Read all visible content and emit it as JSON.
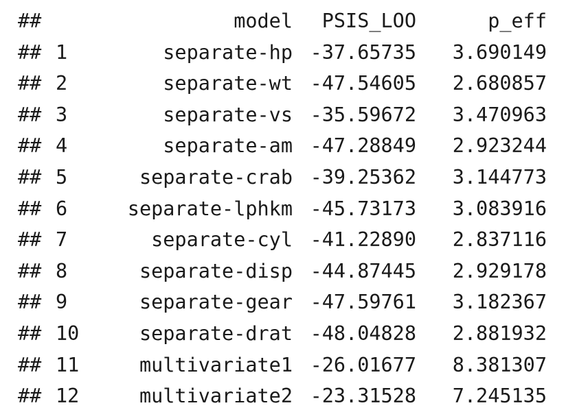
{
  "output": {
    "prefix": "##",
    "header": {
      "index": "",
      "model": "model",
      "psis_loo": "PSIS_LOO",
      "p_eff": "p_eff"
    },
    "rows": [
      {
        "index": "1",
        "model": "separate-hp",
        "psis_loo": "-37.65735",
        "p_eff": "3.690149"
      },
      {
        "index": "2",
        "model": "separate-wt",
        "psis_loo": "-47.54605",
        "p_eff": "2.680857"
      },
      {
        "index": "3",
        "model": "separate-vs",
        "psis_loo": "-35.59672",
        "p_eff": "3.470963"
      },
      {
        "index": "4",
        "model": "separate-am",
        "psis_loo": "-47.28849",
        "p_eff": "2.923244"
      },
      {
        "index": "5",
        "model": "separate-crab",
        "psis_loo": "-39.25362",
        "p_eff": "3.144773"
      },
      {
        "index": "6",
        "model": "separate-lphkm",
        "psis_loo": "-45.73173",
        "p_eff": "3.083916"
      },
      {
        "index": "7",
        "model": "separate-cyl",
        "psis_loo": "-41.22890",
        "p_eff": "2.837116"
      },
      {
        "index": "8",
        "model": "separate-disp",
        "psis_loo": "-44.87445",
        "p_eff": "2.929178"
      },
      {
        "index": "9",
        "model": "separate-gear",
        "psis_loo": "-47.59761",
        "p_eff": "3.182367"
      },
      {
        "index": "10",
        "model": "separate-drat",
        "psis_loo": "-48.04828",
        "p_eff": "2.881932"
      },
      {
        "index": "11",
        "model": "multivariate1",
        "psis_loo": "-26.01677",
        "p_eff": "8.381307"
      },
      {
        "index": "12",
        "model": "multivariate2",
        "psis_loo": "-23.31528",
        "p_eff": "7.245135"
      }
    ]
  }
}
